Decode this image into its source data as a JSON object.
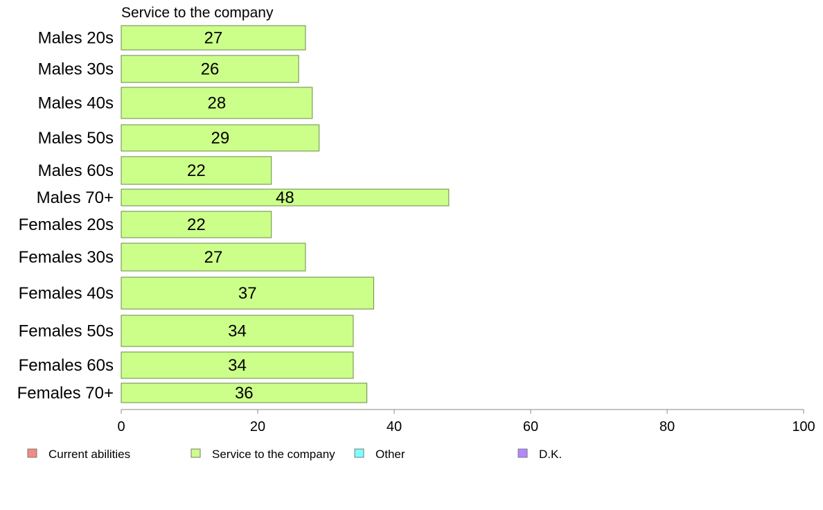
{
  "chart_data": {
    "type": "bar",
    "orientation": "horizontal",
    "series_title": "Service to the company",
    "categories": [
      "Males 20s",
      "Males 30s",
      "Males 40s",
      "Males 50s",
      "Males 60s",
      "Males 70+",
      "Females 20s",
      "Females 30s",
      "Females 40s",
      "Females 50s",
      "Females 60s",
      "Females 70+"
    ],
    "series": [
      {
        "name": "Service to the company",
        "values": [
          27,
          26,
          28,
          29,
          22,
          48,
          22,
          27,
          37,
          34,
          34,
          36
        ]
      }
    ],
    "xlim": [
      0,
      100
    ],
    "xticks": [
      "0",
      "20",
      "40",
      "60",
      "80",
      "100"
    ],
    "grid": false,
    "legend_position": "bottom",
    "legend": [
      {
        "label": "Current abilities",
        "color": "#f28b82"
      },
      {
        "label": "Service to the company",
        "color": "#ccff8a"
      },
      {
        "label": "Other",
        "color": "#80ffff"
      },
      {
        "label": "D.K.",
        "color": "#b388ff"
      }
    ],
    "bar_color": "#ccff8a",
    "bar_stroke": "#6a8a4a"
  }
}
